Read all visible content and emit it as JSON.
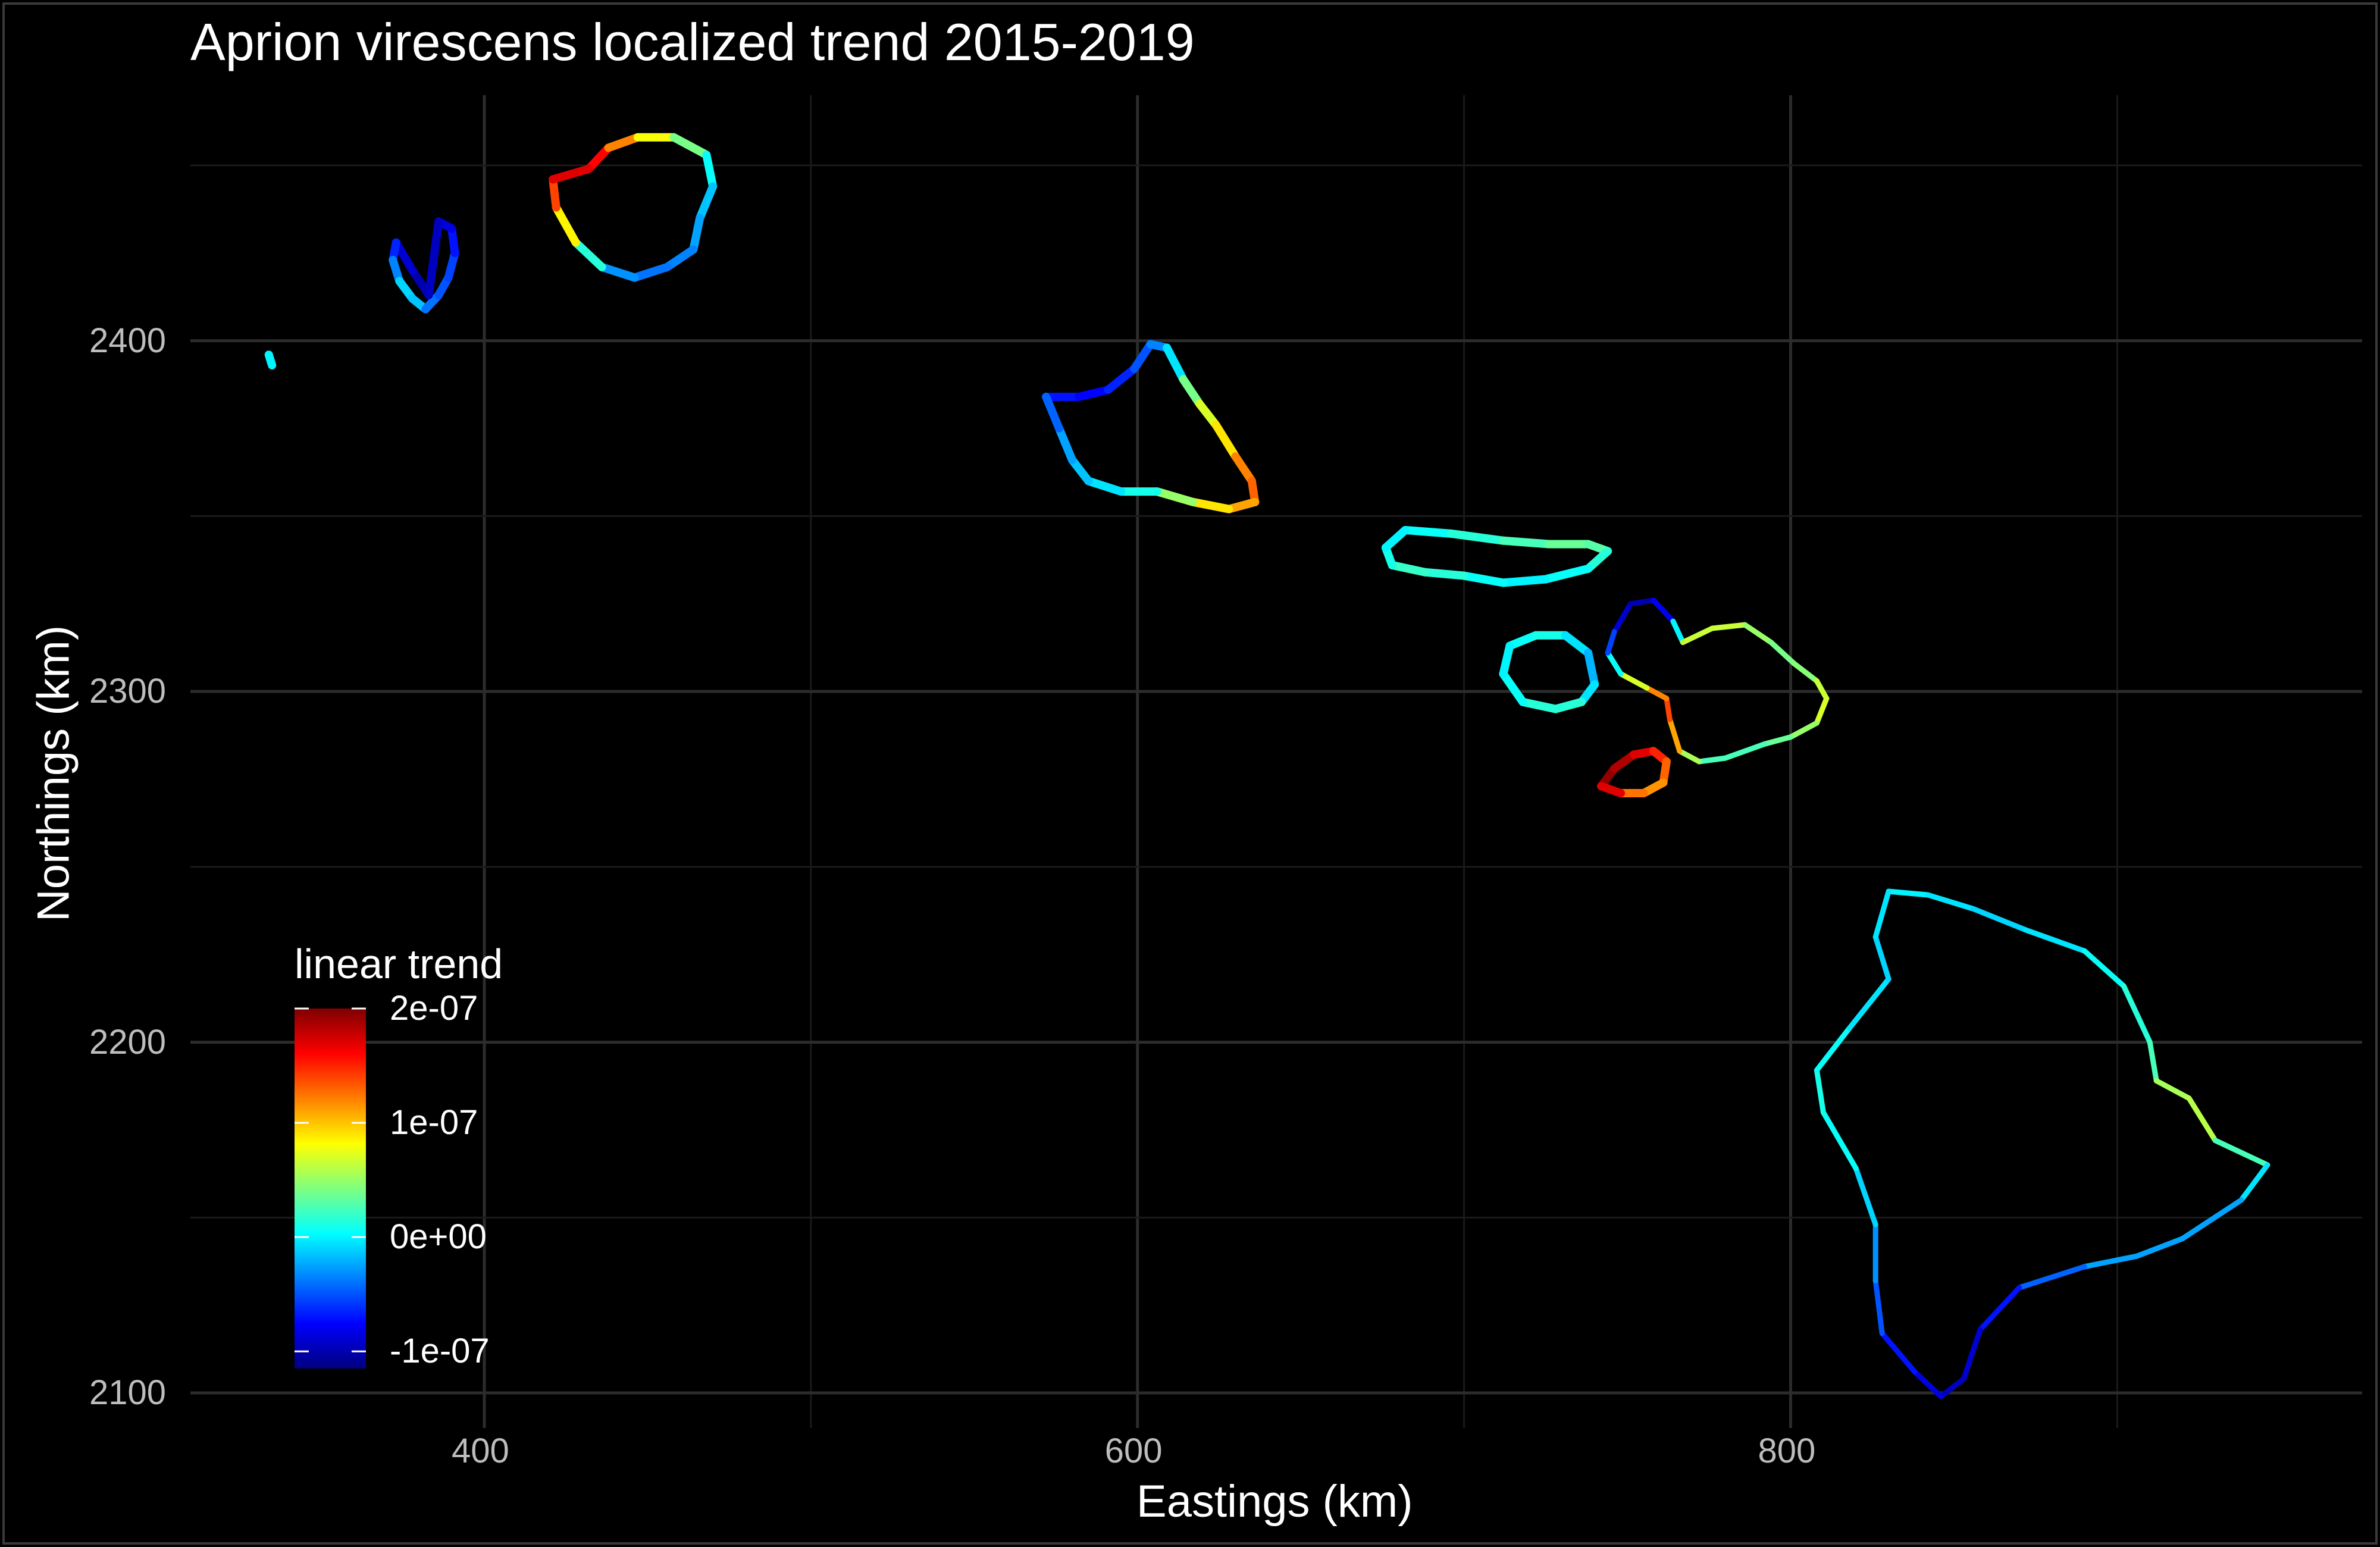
{
  "chart_data": {
    "type": "map",
    "title": "Aprion virescens localized trend 2015-2019",
    "xlabel": "Eastings (km)",
    "ylabel": "Northings (km)",
    "xlim": [
      310,
      975
    ],
    "ylim": [
      2090,
      2470
    ],
    "x_ticks": [
      400,
      600,
      800
    ],
    "y_ticks": [
      2100,
      2200,
      2300,
      2400
    ],
    "grid": true,
    "legend": {
      "title": "linear trend",
      "placement": "bottom-left",
      "range": [
        -1.15e-07,
        2e-07
      ],
      "ticks": [
        {
          "value": 2e-07,
          "label": "2e-07"
        },
        {
          "value": 1e-07,
          "label": "1e-07"
        },
        {
          "value": 0,
          "label": "0e+00"
        },
        {
          "value": -1e-07,
          "label": "-1e-07"
        }
      ],
      "colormap": [
        "#00007f",
        "#0000ff",
        "#007fff",
        "#00ffff",
        "#7fff7f",
        "#ffff00",
        "#ff7f00",
        "#ff0000",
        "#7f0000"
      ]
    },
    "features": [
      {
        "name": "island-niihau",
        "points": [
          [
            383,
            2413
          ],
          [
            378,
            2420
          ],
          [
            373,
            2428
          ],
          [
            372,
            2423
          ],
          [
            374,
            2417
          ],
          [
            378,
            2412
          ],
          [
            382,
            2409
          ],
          [
            386,
            2413
          ],
          [
            389,
            2418
          ],
          [
            391,
            2425
          ],
          [
            390,
            2432
          ],
          [
            386,
            2434
          ]
        ],
        "trends": [
          -0.1,
          -0.1,
          -0.08,
          -0.05,
          -0.02,
          0.0,
          -0.03,
          -0.05,
          -0.05,
          -0.06,
          -0.08,
          -0.09
        ]
      },
      {
        "name": "island-kauai",
        "points": [
          [
            432,
            2449
          ],
          [
            438,
            2455
          ],
          [
            447,
            2458
          ],
          [
            458,
            2458
          ],
          [
            468,
            2453
          ],
          [
            470,
            2444
          ],
          [
            466,
            2435
          ],
          [
            464,
            2426
          ],
          [
            456,
            2421
          ],
          [
            446,
            2418
          ],
          [
            436,
            2421
          ],
          [
            428,
            2428
          ],
          [
            422,
            2438
          ],
          [
            421,
            2446
          ]
        ],
        "trends": [
          0.18,
          0.14,
          0.1,
          0.06,
          0.02,
          -0.01,
          -0.02,
          -0.03,
          -0.04,
          -0.04,
          -0.02,
          0.05,
          0.12,
          0.16
        ]
      },
      {
        "name": "island-oahu",
        "points": [
          [
            572,
            2384
          ],
          [
            582,
            2384
          ],
          [
            591,
            2386
          ],
          [
            599,
            2392
          ],
          [
            604,
            2399
          ],
          [
            609,
            2398
          ],
          [
            614,
            2389
          ],
          [
            619,
            2382
          ],
          [
            624,
            2376
          ],
          [
            630,
            2367
          ],
          [
            635,
            2360
          ],
          [
            636,
            2354
          ],
          [
            628,
            2352
          ],
          [
            617,
            2354
          ],
          [
            606,
            2357
          ],
          [
            595,
            2357
          ],
          [
            585,
            2360
          ],
          [
            580,
            2366
          ],
          [
            576,
            2375
          ]
        ],
        "trends": [
          -0.06,
          -0.08,
          -0.07,
          -0.06,
          -0.04,
          -0.03,
          0.02,
          0.06,
          0.08,
          0.1,
          0.14,
          0.12,
          0.1,
          0.08,
          0.02,
          0.0,
          -0.01,
          -0.02,
          -0.03
        ]
      },
      {
        "name": "island-molokai",
        "points": [
          [
            682,
            2346
          ],
          [
            696,
            2345
          ],
          [
            712,
            2343
          ],
          [
            726,
            2342
          ],
          [
            738,
            2342
          ],
          [
            744,
            2340
          ],
          [
            738,
            2335
          ],
          [
            725,
            2332
          ],
          [
            712,
            2331
          ],
          [
            700,
            2333
          ],
          [
            688,
            2334
          ],
          [
            678,
            2336
          ],
          [
            676,
            2341
          ]
        ],
        "trends": [
          0.0,
          0.01,
          0.02,
          0.03,
          0.04,
          0.02,
          0.01,
          0.0,
          0.0,
          0.01,
          0.02,
          0.02,
          0.0
        ]
      },
      {
        "name": "island-lanai",
        "points": [
          [
            714,
            2313
          ],
          [
            722,
            2316
          ],
          [
            731,
            2316
          ],
          [
            738,
            2311
          ],
          [
            740,
            2302
          ],
          [
            736,
            2297
          ],
          [
            728,
            2295
          ],
          [
            718,
            2297
          ],
          [
            712,
            2305
          ]
        ],
        "trends": [
          0.0,
          0.01,
          0.01,
          -0.02,
          -0.02,
          0.01,
          0.02,
          0.01,
          0.0
        ]
      },
      {
        "name": "island-maui",
        "points": [
          [
            746,
            2317
          ],
          [
            751,
            2325
          ],
          [
            758,
            2326
          ],
          [
            764,
            2320
          ],
          [
            767,
            2314
          ],
          [
            776,
            2318
          ],
          [
            786,
            2319
          ],
          [
            794,
            2314
          ],
          [
            801,
            2308
          ],
          [
            808,
            2303
          ],
          [
            811,
            2298
          ],
          [
            808,
            2291
          ],
          [
            800,
            2287
          ],
          [
            792,
            2285
          ],
          [
            780,
            2281
          ],
          [
            772,
            2280
          ],
          [
            766,
            2283
          ],
          [
            763,
            2292
          ],
          [
            762,
            2298
          ],
          [
            756,
            2301
          ],
          [
            748,
            2305
          ],
          [
            744,
            2311
          ]
        ],
        "trends": [
          -0.08,
          -0.1,
          -0.1,
          -0.06,
          0.06,
          0.07,
          0.06,
          0.04,
          0.04,
          0.05,
          0.08,
          0.06,
          0.04,
          0.03,
          0.02,
          0.03,
          0.08,
          0.14,
          0.14,
          0.1,
          0.04,
          -0.03
        ]
      },
      {
        "name": "island-kahoolawe",
        "points": [
          [
            742,
            2273
          ],
          [
            746,
            2278
          ],
          [
            752,
            2282
          ],
          [
            758,
            2283
          ],
          [
            762,
            2280
          ],
          [
            761,
            2274
          ],
          [
            755,
            2271
          ],
          [
            748,
            2271
          ]
        ],
        "trends": [
          0.2,
          0.19,
          0.18,
          0.16,
          0.14,
          0.12,
          0.11,
          0.14
        ]
      },
      {
        "name": "island-hawaii",
        "points": [
          [
            830,
            2243
          ],
          [
            842,
            2242
          ],
          [
            856,
            2238
          ],
          [
            872,
            2232
          ],
          [
            890,
            2226
          ],
          [
            902,
            2216
          ],
          [
            910,
            2200
          ],
          [
            912,
            2189
          ],
          [
            922,
            2184
          ],
          [
            930,
            2172
          ],
          [
            946,
            2165
          ],
          [
            938,
            2155
          ],
          [
            920,
            2144
          ],
          [
            906,
            2139
          ],
          [
            890,
            2136
          ],
          [
            870,
            2130
          ],
          [
            858,
            2118
          ],
          [
            853,
            2104
          ],
          [
            846,
            2099
          ],
          [
            838,
            2106
          ],
          [
            828,
            2117
          ],
          [
            826,
            2132
          ],
          [
            826,
            2148
          ],
          [
            820,
            2164
          ],
          [
            810,
            2180
          ],
          [
            808,
            2192
          ],
          [
            818,
            2204
          ],
          [
            830,
            2218
          ],
          [
            826,
            2230
          ]
        ],
        "trends": [
          0.0,
          0.0,
          -0.01,
          -0.01,
          0.0,
          0.01,
          0.02,
          0.03,
          0.08,
          0.04,
          0.01,
          -0.02,
          -0.03,
          -0.02,
          -0.03,
          -0.06,
          -0.08,
          -0.1,
          -0.09,
          -0.08,
          -0.06,
          -0.04,
          -0.02,
          0.0,
          0.01,
          0.01,
          0.0,
          -0.01,
          -0.01
        ]
      },
      {
        "name": "islet-lehua",
        "points": [
          [
            334,
            2396
          ],
          [
            335,
            2393
          ]
        ],
        "trends": [
          0.0,
          0.0
        ]
      }
    ]
  }
}
